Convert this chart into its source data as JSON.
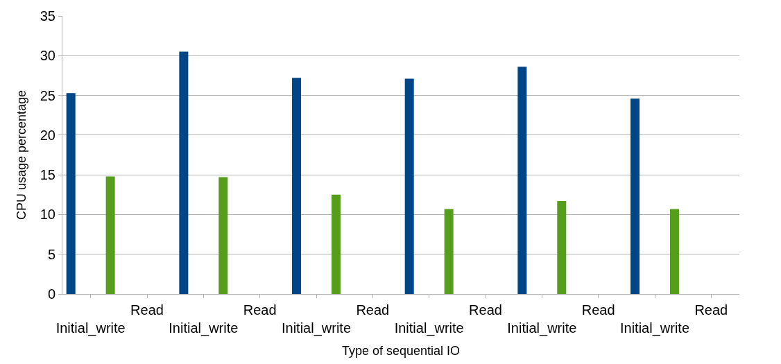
{
  "chart_data": {
    "type": "bar",
    "xlabel": "Type of sequential IO",
    "ylabel": "CPU usage percentage",
    "categories": [
      "Initial_write",
      "Read",
      "Initial_write",
      "Read",
      "Initial_write",
      "Read",
      "Initial_write",
      "Read",
      "Initial_write",
      "Read",
      "Initial_write",
      "Read"
    ],
    "series": [
      {
        "color": "#004586",
        "values": [
          25.3,
          null,
          30.5,
          null,
          27.2,
          null,
          27.1,
          null,
          28.6,
          null,
          24.6,
          null
        ]
      },
      {
        "color": "#579d1c",
        "values": [
          14.8,
          null,
          14.7,
          null,
          12.5,
          null,
          10.7,
          null,
          11.7,
          null,
          10.7,
          null
        ]
      }
    ],
    "ylim": [
      0,
      35
    ],
    "yticks": [
      0,
      5,
      10,
      15,
      20,
      25,
      30,
      35
    ],
    "grid": "y"
  }
}
